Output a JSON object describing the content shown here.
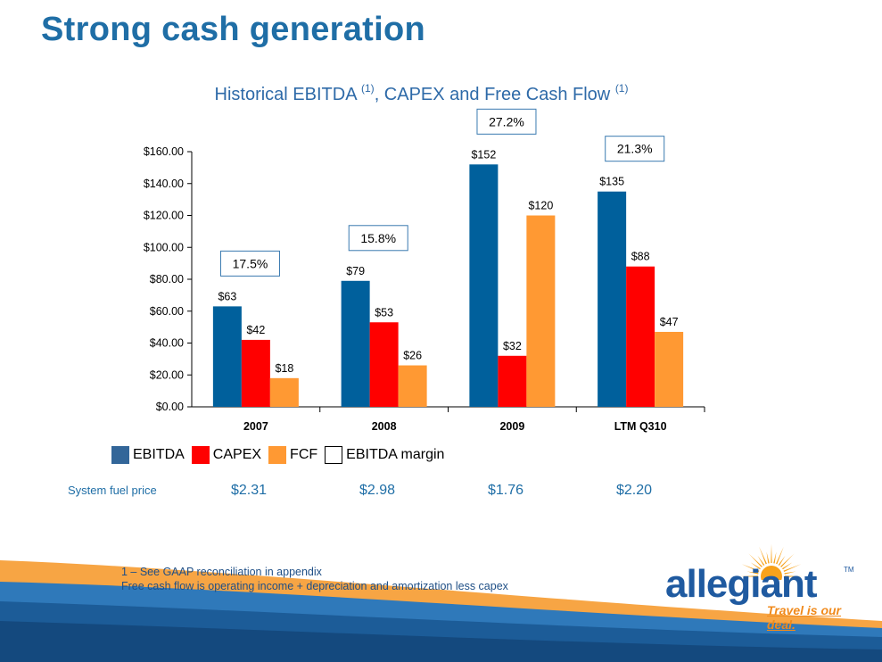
{
  "slide": {
    "title": "Strong cash generation",
    "chart_heading": "Historical EBITDA",
    "chart_heading_mid": ", CAPEX and Free Cash Flow",
    "footnote_marker": "(1)"
  },
  "chart_data": {
    "type": "bar",
    "categories": [
      "2007",
      "2008",
      "2009",
      "LTM Q310"
    ],
    "series": [
      {
        "name": "EBITDA",
        "color": "#00609c",
        "values": [
          63,
          79,
          152,
          135
        ],
        "labels": [
          "$63",
          "$79",
          "$152",
          "$135"
        ]
      },
      {
        "name": "CAPEX",
        "color": "#ff0000",
        "values": [
          42,
          53,
          32,
          88
        ],
        "labels": [
          "$42",
          "$53",
          "$32",
          "$88"
        ]
      },
      {
        "name": "FCF",
        "color": "#ff9933",
        "values": [
          18,
          26,
          120,
          47
        ],
        "labels": [
          "$18",
          "$26",
          "$120",
          "$47"
        ]
      }
    ],
    "margins": [
      "17.5%",
      "15.8%",
      "27.2%",
      "21.3%"
    ],
    "margin_series_name": "EBITDA  margin",
    "ylim": [
      0,
      160
    ],
    "yticks": [
      0,
      20,
      40,
      60,
      80,
      100,
      120,
      140,
      160
    ],
    "ytick_labels": [
      "$0.00",
      "$20.00",
      "$40.00",
      "$60.00",
      "$80.00",
      "$100.00",
      "$120.00",
      "$140.00",
      "$160.00"
    ],
    "grid": false,
    "legend_position": "bottom"
  },
  "fuel": {
    "label": "System fuel price",
    "values": [
      "$2.31",
      "$2.98",
      "$1.76",
      "$2.20"
    ]
  },
  "footnotes": [
    "1 – See GAAP reconciliation in appendix",
    "Free cash flow is operating income + depreciation and amortization less capex"
  ],
  "logo": {
    "wordmark": "allegiant",
    "tagline": "Travel is our deal.",
    "trademark": "TM"
  }
}
